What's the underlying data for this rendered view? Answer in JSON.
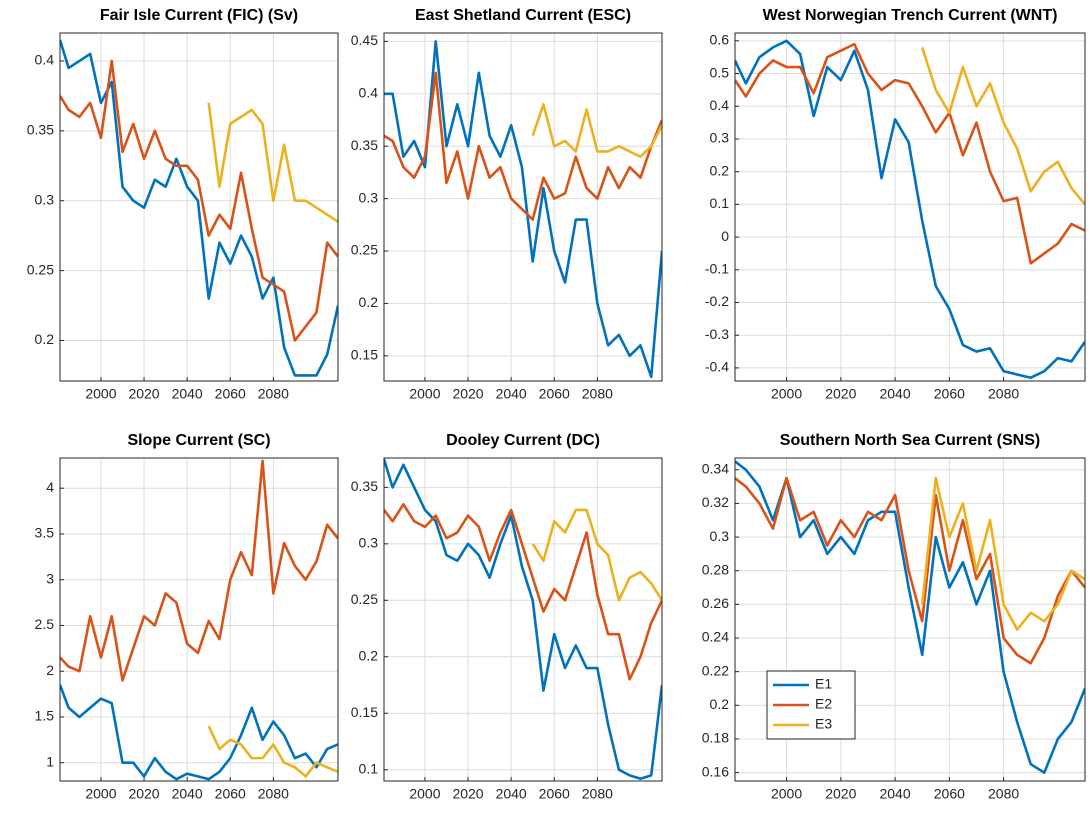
{
  "chart_data": [
    {
      "type": "line",
      "title": "Fair Isle Current (FIC) (Sv)",
      "x": [
        1981,
        1985,
        1990,
        1995,
        2000,
        2005,
        2010,
        2015,
        2020,
        2025,
        2030,
        2035,
        2040,
        2045,
        2050,
        2055,
        2060,
        2065,
        2070,
        2075,
        2080,
        2085,
        2090,
        2095,
        2100,
        2105,
        2110
      ],
      "xlim": [
        1981,
        2110
      ],
      "xticks": [
        2000,
        2020,
        2040,
        2060,
        2080
      ],
      "ylim": [
        0.171,
        0.42
      ],
      "yticks": [
        0.2,
        0.25,
        0.3,
        0.35,
        0.4
      ],
      "grid": true,
      "series": [
        {
          "name": "E1",
          "color": "#0072bd",
          "values": [
            0.415,
            0.395,
            0.4,
            0.405,
            0.37,
            0.385,
            0.31,
            0.3,
            0.295,
            0.315,
            0.31,
            0.33,
            0.31,
            0.3,
            0.23,
            0.27,
            0.255,
            0.275,
            0.26,
            0.23,
            0.245,
            0.195,
            0.175,
            0.175,
            0.175,
            0.19,
            0.225
          ]
        },
        {
          "name": "E2",
          "color": "#d95319",
          "values": [
            0.375,
            0.365,
            0.36,
            0.37,
            0.345,
            0.4,
            0.335,
            0.355,
            0.33,
            0.35,
            0.33,
            0.325,
            0.325,
            0.315,
            0.275,
            0.29,
            0.28,
            0.32,
            0.28,
            0.245,
            0.24,
            0.235,
            0.2,
            0.21,
            0.22,
            0.27,
            0.26
          ]
        },
        {
          "name": "E3",
          "color": "#edb120",
          "values": [
            null,
            null,
            null,
            null,
            null,
            null,
            null,
            null,
            null,
            null,
            null,
            null,
            null,
            null,
            0.37,
            0.31,
            0.355,
            0.36,
            0.365,
            0.355,
            0.3,
            0.34,
            0.3,
            0.3,
            0.295,
            0.29,
            0.285
          ]
        }
      ]
    },
    {
      "type": "line",
      "title": "East Shetland Current (ESC)",
      "x": [
        1981,
        1985,
        1990,
        1995,
        2000,
        2005,
        2010,
        2015,
        2020,
        2025,
        2030,
        2035,
        2040,
        2045,
        2050,
        2055,
        2060,
        2065,
        2070,
        2075,
        2080,
        2085,
        2090,
        2095,
        2100,
        2105,
        2110
      ],
      "xlim": [
        1981,
        2110
      ],
      "xticks": [
        2000,
        2020,
        2040,
        2060,
        2080
      ],
      "ylim": [
        0.126,
        0.458
      ],
      "yticks": [
        0.15,
        0.2,
        0.25,
        0.3,
        0.35,
        0.4,
        0.45
      ],
      "grid": true,
      "series": [
        {
          "name": "E1",
          "color": "#0072bd",
          "values": [
            0.4,
            0.4,
            0.34,
            0.355,
            0.33,
            0.45,
            0.35,
            0.39,
            0.35,
            0.42,
            0.36,
            0.34,
            0.37,
            0.33,
            0.24,
            0.31,
            0.25,
            0.22,
            0.28,
            0.28,
            0.2,
            0.16,
            0.17,
            0.15,
            0.16,
            0.13,
            0.25
          ]
        },
        {
          "name": "E2",
          "color": "#d95319",
          "values": [
            0.36,
            0.355,
            0.33,
            0.32,
            0.34,
            0.42,
            0.315,
            0.345,
            0.3,
            0.35,
            0.32,
            0.33,
            0.3,
            0.29,
            0.28,
            0.32,
            0.3,
            0.305,
            0.34,
            0.31,
            0.3,
            0.33,
            0.31,
            0.33,
            0.32,
            0.35,
            0.375
          ]
        },
        {
          "name": "E3",
          "color": "#edb120",
          "values": [
            null,
            null,
            null,
            null,
            null,
            null,
            null,
            null,
            null,
            null,
            null,
            null,
            null,
            null,
            0.36,
            0.39,
            0.35,
            0.355,
            0.345,
            0.385,
            0.345,
            0.345,
            0.35,
            0.345,
            0.34,
            0.35,
            0.37
          ]
        }
      ]
    },
    {
      "type": "line",
      "title": "West Norwegian Trench Current (WNT)",
      "x": [
        1981,
        1985,
        1990,
        1995,
        2000,
        2005,
        2010,
        2015,
        2020,
        2025,
        2030,
        2035,
        2040,
        2045,
        2050,
        2055,
        2060,
        2065,
        2070,
        2075,
        2080,
        2085,
        2090,
        2095,
        2100,
        2105,
        2110
      ],
      "xlim": [
        1981,
        2110
      ],
      "xticks": [
        2000,
        2020,
        2040,
        2060,
        2080
      ],
      "ylim": [
        -0.44,
        0.624
      ],
      "yticks": [
        -0.4,
        -0.3,
        -0.2,
        -0.1,
        0,
        0.1,
        0.2,
        0.3,
        0.4,
        0.5,
        0.6
      ],
      "grid": true,
      "series": [
        {
          "name": "E1",
          "color": "#0072bd",
          "values": [
            0.54,
            0.47,
            0.55,
            0.58,
            0.6,
            0.56,
            0.37,
            0.52,
            0.48,
            0.57,
            0.45,
            0.18,
            0.36,
            0.29,
            0.05,
            -0.15,
            -0.22,
            -0.33,
            -0.35,
            -0.34,
            -0.41,
            -0.42,
            -0.43,
            -0.41,
            -0.37,
            -0.38,
            -0.32
          ]
        },
        {
          "name": "E2",
          "color": "#d95319",
          "values": [
            0.48,
            0.43,
            0.5,
            0.54,
            0.52,
            0.52,
            0.44,
            0.55,
            0.57,
            0.59,
            0.5,
            0.45,
            0.48,
            0.47,
            0.4,
            0.32,
            0.38,
            0.25,
            0.35,
            0.2,
            0.11,
            0.12,
            -0.08,
            -0.05,
            -0.02,
            0.04,
            0.02
          ]
        },
        {
          "name": "E3",
          "color": "#edb120",
          "values": [
            null,
            null,
            null,
            null,
            null,
            null,
            null,
            null,
            null,
            null,
            null,
            null,
            null,
            null,
            0.58,
            0.45,
            0.38,
            0.52,
            0.4,
            0.47,
            0.35,
            0.27,
            0.14,
            0.2,
            0.23,
            0.15,
            0.1
          ]
        }
      ]
    },
    {
      "type": "line",
      "title": "Slope Current (SC)",
      "x": [
        1981,
        1985,
        1990,
        1995,
        2000,
        2005,
        2010,
        2015,
        2020,
        2025,
        2030,
        2035,
        2040,
        2045,
        2050,
        2055,
        2060,
        2065,
        2070,
        2075,
        2080,
        2085,
        2090,
        2095,
        2100,
        2105,
        2110
      ],
      "xlim": [
        1981,
        2110
      ],
      "xticks": [
        2000,
        2020,
        2040,
        2060,
        2080
      ],
      "ylim": [
        0.8,
        4.33
      ],
      "yticks": [
        1,
        1.5,
        2,
        2.5,
        3,
        3.5,
        4
      ],
      "grid": true,
      "series": [
        {
          "name": "E1",
          "color": "#0072bd",
          "values": [
            1.85,
            1.6,
            1.5,
            1.6,
            1.7,
            1.65,
            1.0,
            1.0,
            0.85,
            1.05,
            0.9,
            0.82,
            0.88,
            0.85,
            0.82,
            0.9,
            1.05,
            1.3,
            1.6,
            1.25,
            1.45,
            1.3,
            1.05,
            1.1,
            0.95,
            1.15,
            1.2
          ]
        },
        {
          "name": "E2",
          "color": "#d95319",
          "values": [
            2.15,
            2.05,
            2.0,
            2.6,
            2.15,
            2.6,
            1.9,
            2.25,
            2.6,
            2.5,
            2.85,
            2.75,
            2.3,
            2.2,
            2.55,
            2.35,
            3.0,
            3.3,
            3.05,
            4.3,
            2.85,
            3.4,
            3.15,
            3.0,
            3.2,
            3.6,
            3.45
          ]
        },
        {
          "name": "E3",
          "color": "#edb120",
          "values": [
            null,
            null,
            null,
            null,
            null,
            null,
            null,
            null,
            null,
            null,
            null,
            null,
            null,
            null,
            1.4,
            1.15,
            1.25,
            1.2,
            1.05,
            1.05,
            1.2,
            1.0,
            0.95,
            0.85,
            1.0,
            0.95,
            0.9
          ]
        }
      ]
    },
    {
      "type": "line",
      "title": "Dooley Current (DC)",
      "x": [
        1981,
        1985,
        1990,
        1995,
        2000,
        2005,
        2010,
        2015,
        2020,
        2025,
        2030,
        2035,
        2040,
        2045,
        2050,
        2055,
        2060,
        2065,
        2070,
        2075,
        2080,
        2085,
        2090,
        2095,
        2100,
        2105,
        2110
      ],
      "xlim": [
        1981,
        2110
      ],
      "xticks": [
        2000,
        2020,
        2040,
        2060,
        2080
      ],
      "ylim": [
        0.09,
        0.376
      ],
      "yticks": [
        0.1,
        0.15,
        0.2,
        0.25,
        0.3,
        0.35
      ],
      "grid": true,
      "series": [
        {
          "name": "E1",
          "color": "#0072bd",
          "values": [
            0.375,
            0.35,
            0.37,
            0.35,
            0.33,
            0.32,
            0.29,
            0.285,
            0.3,
            0.29,
            0.27,
            0.3,
            0.325,
            0.28,
            0.25,
            0.17,
            0.22,
            0.19,
            0.21,
            0.19,
            0.19,
            0.14,
            0.1,
            0.095,
            0.092,
            0.095,
            0.175
          ]
        },
        {
          "name": "E2",
          "color": "#d95319",
          "values": [
            0.33,
            0.32,
            0.335,
            0.32,
            0.315,
            0.325,
            0.305,
            0.31,
            0.325,
            0.315,
            0.285,
            0.31,
            0.33,
            0.3,
            0.27,
            0.24,
            0.26,
            0.25,
            0.28,
            0.31,
            0.255,
            0.22,
            0.22,
            0.18,
            0.2,
            0.23,
            0.25
          ]
        },
        {
          "name": "E3",
          "color": "#edb120",
          "values": [
            null,
            null,
            null,
            null,
            null,
            null,
            null,
            null,
            null,
            null,
            null,
            null,
            null,
            null,
            0.3,
            0.285,
            0.32,
            0.31,
            0.33,
            0.33,
            0.3,
            0.29,
            0.25,
            0.27,
            0.275,
            0.265,
            0.25
          ]
        }
      ]
    },
    {
      "type": "line",
      "title": "Southern North Sea Current (SNS)",
      "x": [
        1981,
        1985,
        1990,
        1995,
        2000,
        2005,
        2010,
        2015,
        2020,
        2025,
        2030,
        2035,
        2040,
        2045,
        2050,
        2055,
        2060,
        2065,
        2070,
        2075,
        2080,
        2085,
        2090,
        2095,
        2100,
        2105,
        2110
      ],
      "xlim": [
        1981,
        2110
      ],
      "xticks": [
        2000,
        2020,
        2040,
        2060,
        2080
      ],
      "ylim": [
        0.155,
        0.347
      ],
      "yticks": [
        0.16,
        0.18,
        0.2,
        0.22,
        0.24,
        0.26,
        0.28,
        0.3,
        0.32,
        0.34
      ],
      "grid": true,
      "legend": "lower left",
      "series": [
        {
          "name": "E1",
          "color": "#0072bd",
          "values": [
            0.345,
            0.34,
            0.33,
            0.31,
            0.335,
            0.3,
            0.31,
            0.29,
            0.3,
            0.29,
            0.31,
            0.315,
            0.315,
            0.27,
            0.23,
            0.3,
            0.27,
            0.285,
            0.26,
            0.28,
            0.22,
            0.19,
            0.165,
            0.16,
            0.18,
            0.19,
            0.21
          ]
        },
        {
          "name": "E2",
          "color": "#d95319",
          "values": [
            0.335,
            0.33,
            0.32,
            0.305,
            0.335,
            0.31,
            0.315,
            0.295,
            0.31,
            0.3,
            0.315,
            0.31,
            0.325,
            0.28,
            0.25,
            0.325,
            0.28,
            0.31,
            0.275,
            0.29,
            0.24,
            0.23,
            0.225,
            0.24,
            0.265,
            0.28,
            0.27
          ]
        },
        {
          "name": "E3",
          "color": "#edb120",
          "values": [
            null,
            null,
            null,
            null,
            null,
            null,
            null,
            null,
            null,
            null,
            null,
            null,
            null,
            null,
            0.26,
            0.335,
            0.3,
            0.32,
            0.28,
            0.31,
            0.26,
            0.245,
            0.255,
            0.25,
            0.26,
            0.28,
            0.275
          ]
        }
      ]
    }
  ]
}
